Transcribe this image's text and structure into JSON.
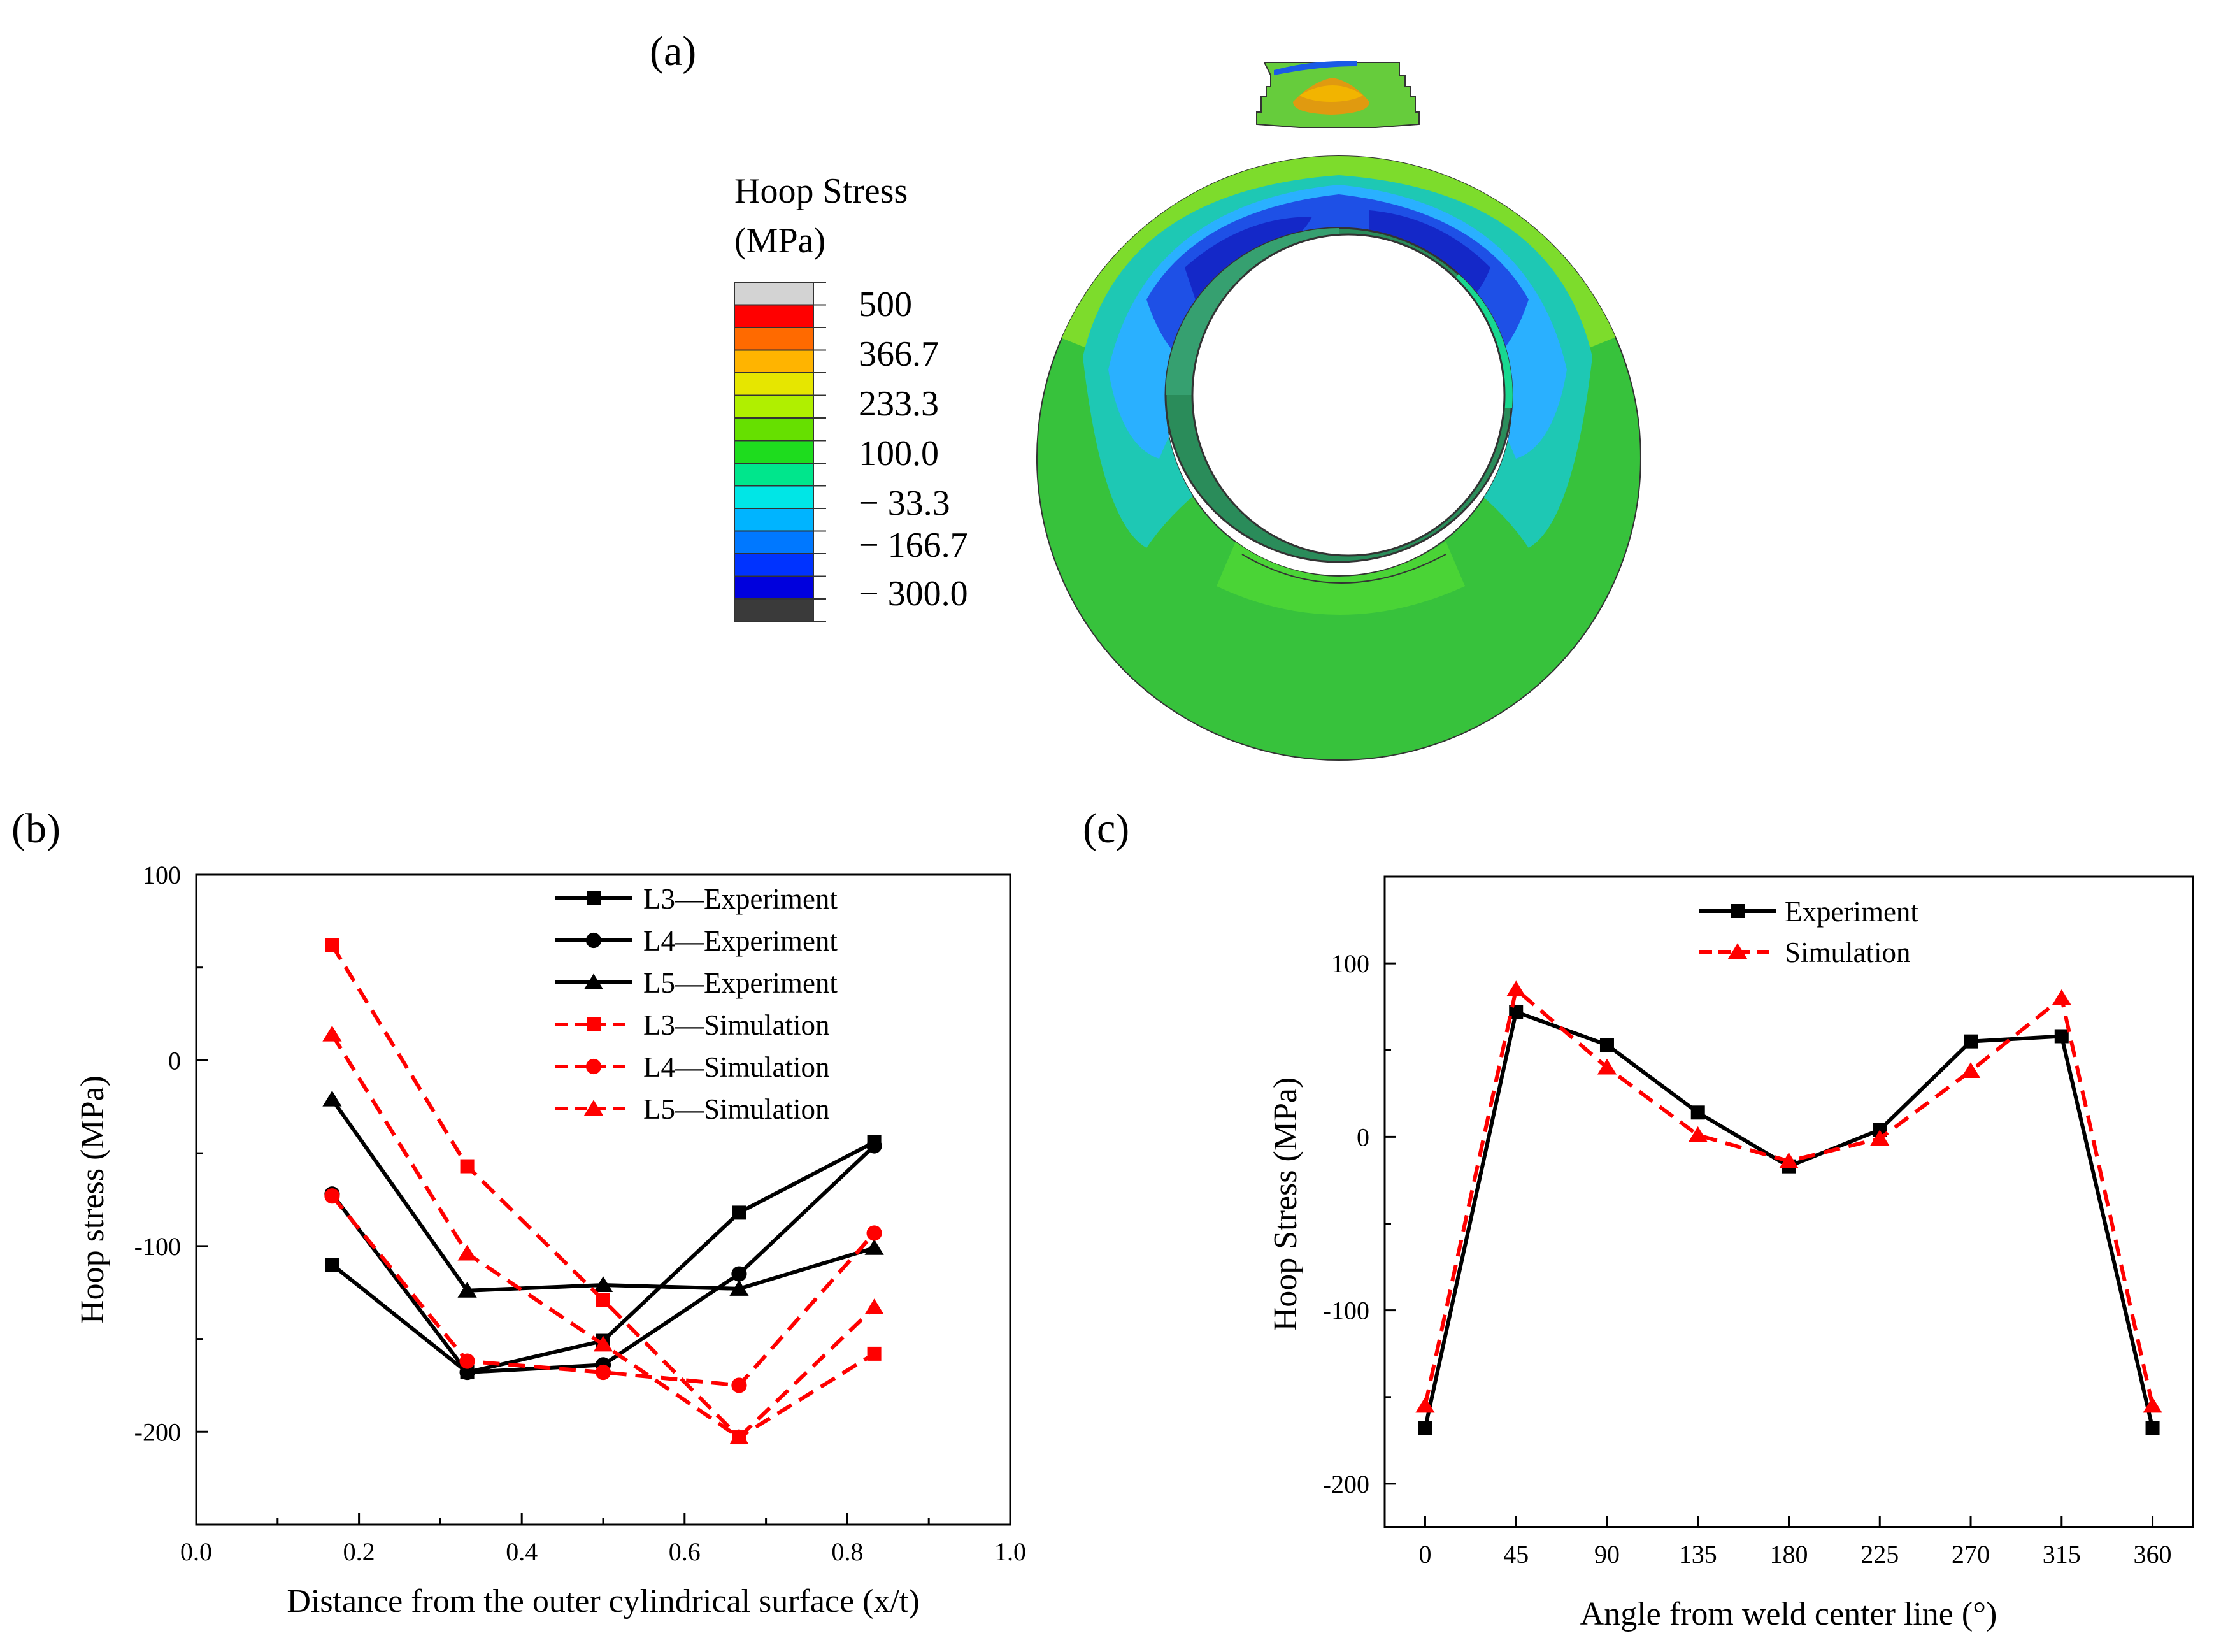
{
  "panel_labels": {
    "a": "(a)",
    "b": "(b)",
    "c": "(c)"
  },
  "colorbar": {
    "title_line1": "Hoop Stress",
    "title_line2": "(MPa)",
    "labels": [
      "500",
      "366.7",
      "233.3",
      "100.0",
      "− 33.3",
      "− 166.7",
      "− 300.0"
    ],
    "colors": [
      "#d3d3d3",
      "#ff0000",
      "#ff6a00",
      "#ffb400",
      "#e6e600",
      "#b0ef00",
      "#66e000",
      "#1edc1e",
      "#00e68c",
      "#00e6e6",
      "#00b4ff",
      "#0078ff",
      "#0033ff",
      "#0000dd",
      "#3a3a3a"
    ],
    "sample_values": [
      500,
      366.7,
      233.3,
      100.0,
      -33.3,
      -166.7,
      -300.0
    ]
  },
  "contour_colors": {
    "outer_green": "#33c03a",
    "light_green": "#52d640",
    "yellow_green": "#a6e62a",
    "orange": "#e6a000",
    "cyan": "#1ec8b4",
    "light_blue": "#28a0ff",
    "blue": "#1e50e6",
    "dark_blue": "#1428c8",
    "bore_green": "#2a8c5a"
  },
  "chart_data": [
    {
      "id": "b",
      "type": "line",
      "xlabel": "Distance from the outer cylindrical surface (x/t)",
      "ylabel": "Hoop stress (MPa)",
      "xlim": [
        0.0,
        1.0
      ],
      "ylim": [
        -250,
        100
      ],
      "xticks": [
        0.0,
        0.2,
        0.4,
        0.6,
        0.8,
        1.0
      ],
      "xtick_labels": [
        "0.0",
        "0.2",
        "0.4",
        "0.6",
        "0.8",
        "1.0"
      ],
      "yticks": [
        -200,
        -100,
        0,
        100
      ],
      "ytick_labels": [
        "-200",
        "-100",
        "0",
        "100"
      ],
      "legend_position": "top-right",
      "series": [
        {
          "name": "L3—Experiment",
          "color": "#000000",
          "dash": "solid",
          "marker": "square",
          "x": [
            0.167,
            0.333,
            0.5,
            0.667,
            0.833
          ],
          "y": [
            -110,
            -168,
            -151,
            -82,
            -44
          ]
        },
        {
          "name": "L4—Experiment",
          "color": "#000000",
          "dash": "solid",
          "marker": "circle",
          "x": [
            0.167,
            0.333,
            0.5,
            0.667,
            0.833
          ],
          "y": [
            -72,
            -168,
            -164,
            -115,
            -46
          ]
        },
        {
          "name": "L5—Experiment",
          "color": "#000000",
          "dash": "solid",
          "marker": "triangle",
          "x": [
            0.167,
            0.333,
            0.5,
            0.667,
            0.833
          ],
          "y": [
            -21,
            -124,
            -121,
            -123,
            -101
          ]
        },
        {
          "name": "L3—Simulation",
          "color": "#ff0000",
          "dash": "dashed",
          "marker": "square",
          "x": [
            0.167,
            0.333,
            0.5,
            0.667,
            0.833
          ],
          "y": [
            62,
            -57,
            -129,
            -203,
            -158
          ]
        },
        {
          "name": "L4—Simulation",
          "color": "#ff0000",
          "dash": "dashed",
          "marker": "circle",
          "x": [
            0.167,
            0.333,
            0.5,
            0.667,
            0.833
          ],
          "y": [
            -73,
            -162,
            -168,
            -175,
            -93
          ]
        },
        {
          "name": "L5—Simulation",
          "color": "#ff0000",
          "dash": "dashed",
          "marker": "triangle",
          "x": [
            0.167,
            0.333,
            0.5,
            0.667,
            0.833
          ],
          "y": [
            14,
            -104,
            -153,
            -203,
            -133
          ]
        }
      ]
    },
    {
      "id": "c",
      "type": "line",
      "xlabel": "Angle from weld center line (°)",
      "ylabel": "Hoop Stress (MPa)",
      "xlim": [
        -20,
        380
      ],
      "ylim": [
        -225,
        150
      ],
      "xticks": [
        0,
        45,
        90,
        135,
        180,
        225,
        270,
        315,
        360
      ],
      "xtick_labels": [
        "0",
        "45",
        "90",
        "135",
        "180",
        "225",
        "270",
        "315",
        "360"
      ],
      "yticks": [
        -200,
        -100,
        0,
        100
      ],
      "ytick_labels": [
        "-200",
        "-100",
        "0",
        "100"
      ],
      "legend_position": "top-center",
      "series": [
        {
          "name": "Experiment",
          "color": "#000000",
          "dash": "solid",
          "marker": "square",
          "x": [
            0,
            45,
            90,
            135,
            180,
            225,
            270,
            315,
            360
          ],
          "y": [
            -168,
            72,
            53,
            14,
            -17,
            4,
            55,
            58,
            -168
          ]
        },
        {
          "name": "Simulation",
          "color": "#ff0000",
          "dash": "dashed",
          "marker": "triangle",
          "x": [
            0,
            45,
            90,
            135,
            180,
            225,
            270,
            315,
            360
          ],
          "y": [
            -155,
            85,
            40,
            1,
            -14,
            -1,
            38,
            80,
            -155
          ]
        }
      ]
    }
  ]
}
